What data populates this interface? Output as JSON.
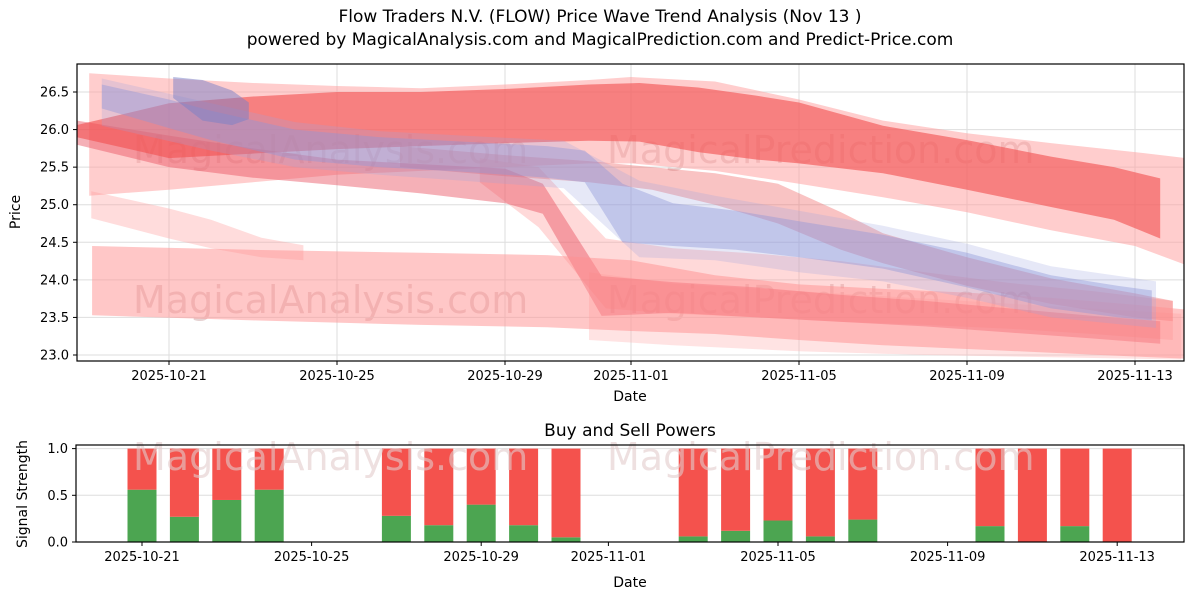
{
  "title": {
    "line1": "Flow Traders N.V. (FLOW) Price Wave Trend Analysis (Nov 13 )",
    "line2": "powered by MagicalAnalysis.com and MagicalPrediction.com and Predict-Price.com"
  },
  "watermarks": {
    "analysis": "MagicalAnalysis.com",
    "prediction": "MagicalPrediction.com"
  },
  "colors": {
    "bar_buy": "#4ca551",
    "bar_sell": "#f4524d",
    "grid": "#dedede",
    "axis": "#000000",
    "watermark_top": "#cfa6a6",
    "watermark_bottom": "#e3cccc",
    "tick_text": "#000000"
  },
  "chart_data": [
    {
      "type": "area",
      "name": "price-wave-chart",
      "xlabel": "Date",
      "ylabel": "Price",
      "x_unit": "days_since_2025-10-21",
      "x_ticks": [
        "2025-10-21",
        "2025-10-25",
        "2025-10-29",
        "2025-11-01",
        "2025-11-05",
        "2025-11-09",
        "2025-11-13"
      ],
      "y_ticks": [
        23.0,
        23.5,
        24.0,
        24.5,
        25.0,
        25.5,
        26.0,
        26.5
      ],
      "ylim": [
        22.92,
        26.87
      ],
      "xlim_days": [
        -2.2,
        24.2
      ],
      "grid": true,
      "legend": false,
      "bands": [
        {
          "name": "upper-envelope-pink",
          "color": "#ff9c9c",
          "opacity": 0.5,
          "points": [
            [
              -1.9,
              26.75,
              25.12
            ],
            [
              0,
              26.68,
              25.2
            ],
            [
              2,
              26.62,
              25.3
            ],
            [
              4,
              26.58,
              25.4
            ],
            [
              6,
              26.55,
              25.45
            ],
            [
              8,
              26.6,
              25.5
            ],
            [
              10,
              26.66,
              25.55
            ],
            [
              11,
              26.7,
              25.55
            ],
            [
              13,
              26.64,
              25.45
            ],
            [
              15,
              26.4,
              25.28
            ],
            [
              17,
              26.12,
              25.1
            ],
            [
              19,
              25.95,
              24.9
            ],
            [
              21,
              25.82,
              24.66
            ],
            [
              23,
              25.7,
              24.45
            ],
            [
              24.2,
              25.62,
              24.2
            ]
          ]
        },
        {
          "name": "drop-envelope-pink",
          "color": "#ff9c9c",
          "opacity": 0.38,
          "points": [
            [
              7.4,
              25.62,
              25.3
            ],
            [
              8.8,
              25.5,
              24.7
            ],
            [
              10.4,
              24.55,
              23.62
            ],
            [
              12,
              24.42,
              23.55
            ],
            [
              14,
              24.35,
              23.5
            ],
            [
              16,
              24.25,
              23.44
            ],
            [
              18,
              24.1,
              23.4
            ],
            [
              20,
              23.96,
              23.35
            ],
            [
              22,
              23.85,
              23.28
            ],
            [
              23.9,
              23.72,
              23.2
            ]
          ]
        },
        {
          "name": "low-wide-pink",
          "color": "#ffa8a8",
          "opacity": 0.32,
          "points": [
            [
              10,
              24.1,
              23.2
            ],
            [
              12,
              23.95,
              23.13
            ],
            [
              15,
              23.85,
              23.05
            ],
            [
              18,
              23.75,
              23.0
            ],
            [
              21,
              23.65,
              22.97
            ],
            [
              24.1,
              23.55,
              22.94
            ]
          ]
        },
        {
          "name": "second-tier-red",
          "color": "#ef6a6a",
          "opacity": 0.4,
          "points": [
            [
              5.5,
              25.78,
              25.5
            ],
            [
              8,
              25.66,
              25.38
            ],
            [
              10,
              25.58,
              25.3
            ],
            [
              11.5,
              25.5,
              25.2
            ],
            [
              13,
              25.42,
              25.0
            ],
            [
              14.5,
              25.28,
              24.75
            ],
            [
              16,
              24.9,
              24.4
            ],
            [
              17,
              24.62,
              24.22
            ],
            [
              19,
              24.3,
              23.92
            ],
            [
              21,
              24.02,
              23.68
            ],
            [
              23,
              23.82,
              23.5
            ],
            [
              23.9,
              23.72,
              23.45
            ]
          ]
        },
        {
          "name": "mid-decline-red",
          "color": "#e8505f",
          "opacity": 0.45,
          "points": [
            [
              -2.2,
              26.12,
              25.8
            ],
            [
              0,
              25.92,
              25.5
            ],
            [
              2,
              25.75,
              25.36
            ],
            [
              4,
              25.6,
              25.26
            ],
            [
              6,
              25.54,
              25.15
            ],
            [
              8,
              25.48,
              25.02
            ],
            [
              8.9,
              25.28,
              24.88
            ],
            [
              10.3,
              24.05,
              23.52
            ],
            [
              12,
              23.97,
              23.56
            ],
            [
              14,
              23.9,
              23.5
            ],
            [
              16,
              23.8,
              23.44
            ],
            [
              18,
              23.72,
              23.38
            ],
            [
              20,
              23.62,
              23.3
            ],
            [
              22,
              23.52,
              23.22
            ],
            [
              23.6,
              23.45,
              23.15
            ]
          ]
        },
        {
          "name": "core-red",
          "color": "#f25050",
          "opacity": 0.62,
          "points": [
            [
              -2.2,
              26.06,
              25.9
            ],
            [
              0,
              26.35,
              25.62
            ],
            [
              2,
              26.44,
              25.68
            ],
            [
              4,
              26.5,
              25.74
            ],
            [
              6,
              26.5,
              25.78
            ],
            [
              8,
              26.54,
              25.82
            ],
            [
              10,
              26.6,
              25.85
            ],
            [
              11.2,
              26.62,
              25.84
            ],
            [
              12.6,
              26.56,
              25.7
            ],
            [
              14,
              26.45,
              25.6
            ],
            [
              15,
              26.36,
              25.55
            ],
            [
              17,
              26.05,
              25.42
            ],
            [
              19,
              25.86,
              25.2
            ],
            [
              21,
              25.64,
              24.97
            ],
            [
              22.5,
              25.5,
              24.8
            ],
            [
              23.6,
              25.35,
              24.55
            ]
          ]
        },
        {
          "name": "left-connector-pink",
          "color": "#ff9c9c",
          "opacity": 0.35,
          "points": [
            [
              -1.85,
              25.18,
              24.82
            ],
            [
              0,
              24.95,
              24.55
            ],
            [
              1,
              24.8,
              24.42
            ],
            [
              2.2,
              24.56,
              24.3
            ],
            [
              3.2,
              24.46,
              24.26
            ]
          ]
        },
        {
          "name": "lower-pink",
          "color": "#ff8f8f",
          "opacity": 0.5,
          "points": [
            [
              -1.83,
              24.45,
              23.53
            ],
            [
              2,
              24.4,
              23.46
            ],
            [
              6,
              24.36,
              23.4
            ],
            [
              9,
              24.33,
              23.37
            ],
            [
              11,
              24.26,
              23.32
            ],
            [
              13,
              24.06,
              23.28
            ],
            [
              15,
              23.94,
              23.2
            ],
            [
              17,
              23.88,
              23.13
            ],
            [
              19,
              23.83,
              23.08
            ],
            [
              21,
              23.76,
              23.03
            ],
            [
              23,
              23.67,
              22.98
            ],
            [
              24.3,
              23.6,
              22.95
            ]
          ]
        },
        {
          "name": "blue-soft-envelope",
          "color": "#9aa2e0",
          "opacity": 0.25,
          "points": [
            [
              -1.6,
              26.68,
              26.05
            ],
            [
              1,
              26.35,
              25.72
            ],
            [
              3,
              26.1,
              25.5
            ],
            [
              5,
              25.98,
              25.4
            ],
            [
              7,
              25.92,
              25.32
            ],
            [
              9.4,
              25.85,
              25.22
            ],
            [
              11.2,
              25.32,
              24.3
            ],
            [
              13,
              25.12,
              24.26
            ],
            [
              15,
              24.92,
              24.1
            ],
            [
              17,
              24.72,
              23.98
            ],
            [
              19,
              24.48,
              23.76
            ],
            [
              21,
              24.18,
              23.5
            ],
            [
              23.5,
              23.98,
              23.36
            ]
          ]
        },
        {
          "name": "blue-main",
          "color": "#8f97d8",
          "opacity": 0.42,
          "points": [
            [
              -1.6,
              26.6,
              26.28
            ],
            [
              0,
              26.4,
              26.02
            ],
            [
              1,
              26.25,
              25.86
            ],
            [
              3,
              26.0,
              25.6
            ],
            [
              5,
              25.9,
              25.5
            ],
            [
              7,
              25.84,
              25.44
            ],
            [
              9,
              25.78,
              25.36
            ],
            [
              9.9,
              25.72,
              25.3
            ],
            [
              10.8,
              25.28,
              24.5
            ],
            [
              12,
              25.02,
              24.45
            ],
            [
              13.5,
              24.92,
              24.4
            ],
            [
              15,
              24.78,
              24.3
            ],
            [
              17,
              24.6,
              24.15
            ],
            [
              19,
              24.36,
              23.9
            ],
            [
              21,
              24.06,
              23.62
            ],
            [
              22.6,
              23.92,
              23.5
            ],
            [
              23.4,
              23.86,
              23.46
            ]
          ]
        },
        {
          "name": "blue-blob-topleft",
          "color": "#7880c8",
          "opacity": 0.5,
          "points": [
            [
              0.1,
              26.7,
              26.42
            ],
            [
              0.8,
              26.66,
              26.12
            ],
            [
              1.5,
              26.52,
              26.06
            ],
            [
              1.9,
              26.36,
              26.14
            ]
          ]
        }
      ]
    },
    {
      "type": "bar",
      "name": "buy-sell-powers-chart",
      "title": "Buy and Sell Powers",
      "xlabel": "Date",
      "ylabel": "Signal Strength",
      "stacked": true,
      "x_ticks": [
        "2025-10-21",
        "2025-10-25",
        "2025-10-29",
        "2025-11-01",
        "2025-11-05",
        "2025-11-09",
        "2025-11-13"
      ],
      "y_ticks": [
        0.0,
        0.5,
        1.0
      ],
      "ylim": [
        0,
        1.04
      ],
      "grid": true,
      "legend": false,
      "categories": [
        "2025-10-21",
        "2025-10-22",
        "2025-10-23",
        "2025-10-24",
        "2025-10-27",
        "2025-10-28",
        "2025-10-29",
        "2025-10-30",
        "2025-10-31",
        "2025-11-03",
        "2025-11-04",
        "2025-11-05",
        "2025-11-06",
        "2025-11-07",
        "2025-11-10",
        "2025-11-11",
        "2025-11-12",
        "2025-11-13"
      ],
      "series": [
        {
          "name": "Buy Power",
          "color": "#4ca551",
          "values": [
            0.56,
            0.27,
            0.45,
            0.56,
            0.28,
            0.18,
            0.4,
            0.18,
            0.05,
            0.06,
            0.12,
            0.23,
            0.06,
            0.24,
            0.17,
            0.0,
            0.17,
            0.0
          ]
        },
        {
          "name": "Sell Power",
          "color": "#f4524d",
          "values": [
            0.44,
            0.73,
            0.55,
            0.44,
            0.72,
            0.82,
            0.6,
            0.82,
            0.95,
            0.94,
            0.88,
            0.77,
            0.94,
            0.76,
            0.83,
            1.0,
            0.83,
            1.0
          ]
        }
      ]
    }
  ]
}
